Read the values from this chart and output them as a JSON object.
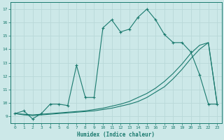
{
  "xlabel": "Humidex (Indice chaleur)",
  "bg_color": "#cce8e8",
  "line_color": "#1a7a6e",
  "grid_color": "#b8d8d8",
  "xlim": [
    -0.5,
    23.5
  ],
  "ylim": [
    8.5,
    17.5
  ],
  "x_ticks": [
    0,
    1,
    2,
    3,
    4,
    5,
    6,
    7,
    8,
    9,
    10,
    11,
    12,
    13,
    14,
    15,
    16,
    17,
    18,
    19,
    20,
    21,
    22,
    23
  ],
  "y_ticks": [
    9,
    10,
    11,
    12,
    13,
    14,
    15,
    16,
    17
  ],
  "series1_x": [
    0,
    1,
    2,
    3,
    4,
    5,
    6,
    7,
    8,
    9,
    10,
    11,
    12,
    13,
    14,
    15,
    16,
    17,
    18,
    19,
    20,
    21,
    22,
    23
  ],
  "series1_y": [
    9.2,
    9.4,
    8.8,
    9.2,
    9.9,
    9.9,
    9.8,
    12.8,
    10.4,
    10.4,
    15.6,
    16.2,
    15.3,
    15.5,
    16.4,
    17.0,
    16.2,
    15.1,
    14.5,
    14.5,
    13.8,
    12.1,
    9.9,
    9.9
  ],
  "series2_x": [
    0,
    1,
    2,
    3,
    4,
    5,
    6,
    7,
    8,
    9,
    10,
    11,
    12,
    13,
    14,
    15,
    16,
    17,
    18,
    19,
    20,
    21,
    22,
    23
  ],
  "series2_y": [
    9.2,
    9.15,
    9.1,
    9.15,
    9.2,
    9.25,
    9.3,
    9.35,
    9.4,
    9.5,
    9.6,
    9.75,
    9.9,
    10.1,
    10.4,
    10.7,
    11.1,
    11.6,
    12.2,
    12.9,
    13.7,
    14.3,
    14.5,
    9.9
  ],
  "series3_x": [
    0,
    1,
    2,
    3,
    4,
    5,
    6,
    7,
    8,
    9,
    10,
    11,
    12,
    13,
    14,
    15,
    16,
    17,
    18,
    19,
    20,
    21,
    22,
    23
  ],
  "series3_y": [
    9.2,
    9.1,
    9.05,
    9.1,
    9.15,
    9.2,
    9.25,
    9.3,
    9.35,
    9.4,
    9.5,
    9.6,
    9.75,
    9.9,
    10.1,
    10.4,
    10.8,
    11.2,
    11.8,
    12.5,
    13.3,
    14.0,
    14.5,
    9.9
  ]
}
